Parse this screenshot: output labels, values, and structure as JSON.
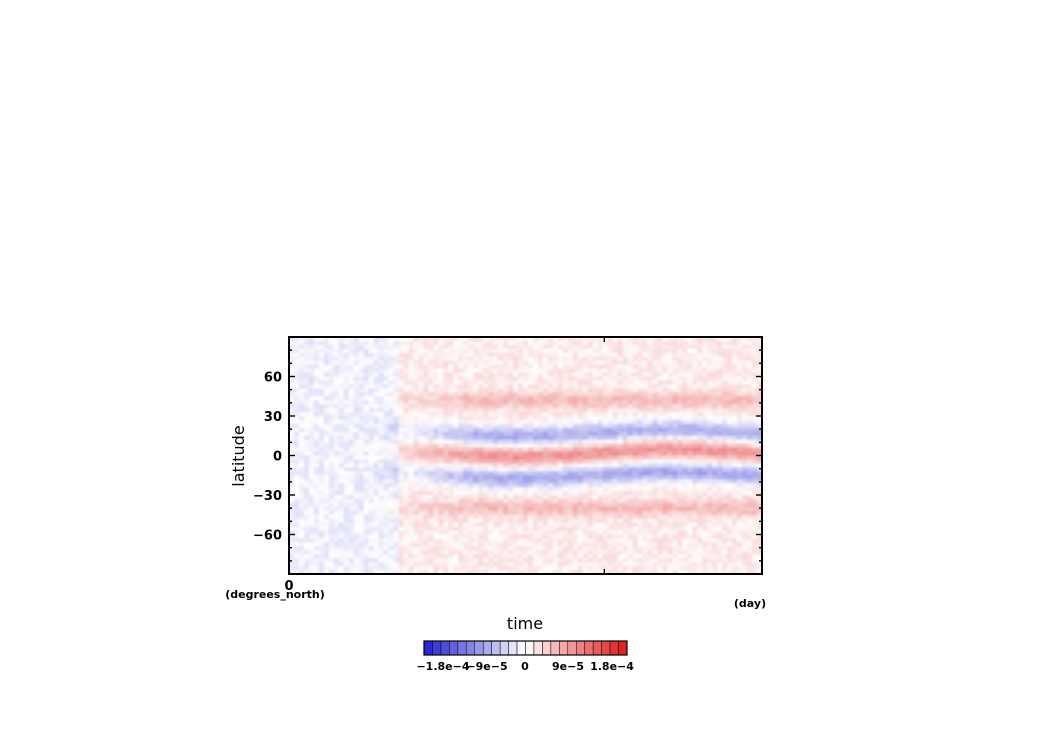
{
  "chart_data": {
    "type": "heatmap",
    "ylabel": "latitude",
    "xlabel": "time",
    "y_units": "(degrees_north)",
    "x_units": "(day)",
    "ylim": [
      -90,
      90
    ],
    "xlim": [
      0,
      1.5
    ],
    "y_ticks": [
      60,
      30,
      0,
      -30,
      -60
    ],
    "x_tick_labels": [
      {
        "value": 0,
        "label": "0"
      }
    ],
    "x_minor_tick_values": [
      1
    ],
    "grid": false,
    "colorbar": {
      "range": [
        -0.00018,
        0.00018
      ],
      "tick_labels": [
        "−1.8e−4",
        "−9e−5",
        "0",
        "9e−5",
        "1.8e−4"
      ],
      "tick_values": [
        -0.00018,
        -9e-05,
        0,
        9e-05,
        0.00018
      ],
      "levels": 24,
      "colors": {
        "negative": "#2020d0",
        "zero": "#ffffff",
        "positive": "#e01818"
      }
    },
    "structure": {
      "description_bands_latitudes": [
        -15,
        0,
        15,
        40,
        -40
      ],
      "equatorial_band_value": 7e-05,
      "subtropical_band_value": -8e-05,
      "midlatitude_band_value": 4e-05
    }
  }
}
